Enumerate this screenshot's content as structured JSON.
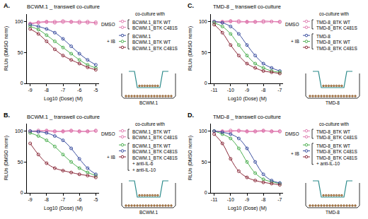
{
  "chart_data": [
    {
      "type": "line",
      "panel_label": "A.",
      "title": "BCWM.1 _ transwell co-culture",
      "x_label": "Log10 (Dose) (M)",
      "y_label": "RLUs (DMSO norm)",
      "xlim": [
        -9.2,
        -4.8
      ],
      "xticks": [
        -9,
        -8,
        -7,
        -6,
        -5
      ],
      "ylim": [
        0,
        112
      ],
      "yticks": [
        0,
        50,
        100
      ],
      "grid": false,
      "marker": "circle-open",
      "legend": "right",
      "legend_title": "co-culture with",
      "insert_label": "BCWM.1",
      "x": [
        -9,
        -8.5,
        -8,
        -7.5,
        -7,
        -6.5,
        -6,
        -5.5,
        -5
      ],
      "series": [
        {
          "name": "BCWM.1_BTK WT",
          "group": "DMSO",
          "color": "#e07bb0",
          "values": [
            97,
            99,
            100,
            98,
            101,
            99,
            100,
            98,
            99
          ]
        },
        {
          "name": "BCWM.1_BTK C481S",
          "group": "DMSO",
          "color": "#e07bb0",
          "values": [
            96,
            98,
            99,
            100,
            99,
            100,
            98,
            100,
            97
          ]
        },
        {
          "name": "BCWM.1",
          "group": "+ IB",
          "color": "#3b4fa0",
          "values": [
            95,
            92,
            88,
            82,
            72,
            60,
            48,
            38,
            30
          ]
        },
        {
          "name": "BCWM.1_BTK WT",
          "group": "+ IB",
          "color": "#4caf50",
          "values": [
            92,
            87,
            78,
            68,
            58,
            48,
            38,
            30,
            25
          ]
        },
        {
          "name": "BCWM.1_BTK C481S",
          "group": "+ IB",
          "color": "#8b2a3a",
          "values": [
            88,
            80,
            68,
            55,
            45,
            38,
            32,
            26,
            22
          ]
        }
      ]
    },
    {
      "type": "line",
      "panel_label": "B.",
      "title": "BCWM.1 _ transwell co-culture",
      "x_label": "Log10 (Dose) (M)",
      "y_label": "RLUs (DMSO norm)",
      "xlim": [
        -9.2,
        -4.8
      ],
      "xticks": [
        -9,
        -8,
        -7,
        -6,
        -5
      ],
      "ylim": [
        0,
        112
      ],
      "yticks": [
        0,
        50,
        100
      ],
      "grid": false,
      "marker": "circle-open",
      "legend": "right",
      "legend_title": "co-culture with",
      "insert_label": "BCWM.1",
      "x": [
        -9,
        -8.5,
        -8,
        -7.5,
        -7,
        -6.5,
        -6,
        -5.5,
        -5
      ],
      "series": [
        {
          "name": "BCWM.1_BTK WT",
          "group": "DMSO",
          "color": "#e07bb0",
          "values": [
            99,
            101,
            100,
            99,
            100,
            101,
            99,
            100,
            100
          ]
        },
        {
          "name": "BCWM.1_BTK C481S",
          "group": "DMSO",
          "color": "#e07bb0",
          "values": [
            100,
            99,
            101,
            100,
            99,
            100,
            100,
            99,
            101
          ]
        },
        {
          "name": "BCWM.1_BTK WT",
          "group": "+ IB",
          "color": "#4caf50",
          "values": [
            97,
            92,
            85,
            75,
            62,
            50,
            40,
            33,
            28
          ]
        },
        {
          "name": "BCWM.1_BTK C481S",
          "group": "+ IB",
          "color": "#3b4fa0",
          "values": [
            100,
            99,
            97,
            92,
            85,
            72,
            55,
            40,
            30
          ]
        },
        {
          "name": "BCWM.1_BTK C481S + anti-IL-6 + anti-IL-10",
          "group": "+ IB",
          "color": "#8b2a3a",
          "values": [
            80,
            62,
            48,
            40,
            36,
            33,
            30,
            28,
            25
          ]
        }
      ]
    },
    {
      "type": "line",
      "panel_label": "C.",
      "title": "TMD-8 _ transwell co-culture",
      "x_label": "Log10 (Dose) (M)",
      "y_label": "RLUs (DMSO norm)",
      "xlim": [
        -11.2,
        -6.8
      ],
      "xticks": [
        -11,
        -10,
        -9,
        -8,
        -7
      ],
      "ylim": [
        0,
        112
      ],
      "yticks": [
        0,
        50,
        100
      ],
      "grid": false,
      "marker": "circle-open",
      "legend": "right",
      "legend_title": "co-culture with",
      "insert_label": "TMD-8",
      "x": [
        -11,
        -10.5,
        -10,
        -9.5,
        -9,
        -8.5,
        -8,
        -7.5,
        -7
      ],
      "series": [
        {
          "name": "TMD-8_BTK WT",
          "group": "DMSO",
          "color": "#e07bb0",
          "values": [
            99,
            100,
            101,
            99,
            100,
            99,
            101,
            100,
            99
          ]
        },
        {
          "name": "TMD-8_BTK C481S",
          "group": "DMSO",
          "color": "#e07bb0",
          "values": [
            100,
            99,
            100,
            101,
            99,
            100,
            99,
            100,
            100
          ]
        },
        {
          "name": "TMD-8",
          "group": "+ IB",
          "color": "#3b4fa0",
          "values": [
            100,
            98,
            92,
            80,
            62,
            45,
            32,
            25,
            20
          ]
        },
        {
          "name": "TMD-8_BTK WT",
          "group": "+ IB",
          "color": "#4caf50",
          "values": [
            98,
            92,
            80,
            62,
            45,
            32,
            25,
            20,
            18
          ]
        },
        {
          "name": "TMD-8_BTK C481S",
          "group": "+ IB",
          "color": "#8b2a3a",
          "values": [
            95,
            82,
            62,
            45,
            32,
            25,
            20,
            18,
            16
          ]
        }
      ]
    },
    {
      "type": "line",
      "panel_label": "D.",
      "title": "TMD-8 _ transwell co-culture",
      "x_label": "Log10 (Dose) (M)",
      "y_label": "RLUs (DMSO norm)",
      "xlim": [
        -11.2,
        -6.8
      ],
      "xticks": [
        -11,
        -10,
        -9,
        -8,
        -7
      ],
      "ylim": [
        0,
        112
      ],
      "yticks": [
        0,
        50,
        100
      ],
      "grid": false,
      "marker": "circle-open",
      "legend": "right",
      "legend_title": "co-culture with",
      "insert_label": "TMD-8",
      "x": [
        -11,
        -10.5,
        -10,
        -9.5,
        -9,
        -8.5,
        -8,
        -7.5,
        -7
      ],
      "series": [
        {
          "name": "TMD-8_BTK WT",
          "group": "DMSO",
          "color": "#e07bb0",
          "values": [
            100,
            99,
            101,
            100,
            99,
            100,
            101,
            99,
            100
          ]
        },
        {
          "name": "TMD-8_BTK C481S",
          "group": "DMSO",
          "color": "#e07bb0",
          "values": [
            99,
            100,
            99,
            101,
            100,
            99,
            100,
            100,
            99
          ]
        },
        {
          "name": "TMD-8_BTK WT",
          "group": "+ IB",
          "color": "#4caf50",
          "values": [
            100,
            95,
            88,
            72,
            50,
            32,
            22,
            18,
            15
          ]
        },
        {
          "name": "TMD-8_BTK C481S",
          "group": "+ IB",
          "color": "#3b4fa0",
          "values": [
            100,
            98,
            95,
            88,
            72,
            50,
            30,
            20,
            16
          ]
        },
        {
          "name": "TMD-8_BTK C481S + anti-IL-10",
          "group": "+ IB",
          "color": "#8b2a3a",
          "values": [
            95,
            80,
            55,
            35,
            25,
            20,
            17,
            15,
            13
          ]
        }
      ]
    }
  ]
}
